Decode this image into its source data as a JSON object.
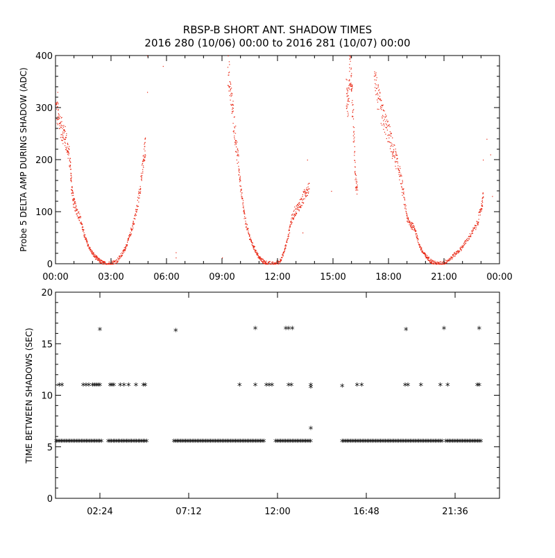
{
  "title_line1": "RBSP-B SHORT ANT. SHADOW TIMES",
  "title_line2": "2016 280 (10/06) 00:00 to 2016 281 (10/07) 00:00",
  "colors": {
    "red": "#e8200c",
    "black": "#000000",
    "axis": "#000000"
  },
  "chart_data": [
    {
      "type": "scatter",
      "id": "top",
      "ylabel": "Probe 5 DELTA AMP DURING SHADOW (ADC)",
      "xlabel": "",
      "x_unit": "hours",
      "xlim": [
        0,
        24
      ],
      "ylim": [
        0,
        400
      ],
      "xticks": [
        0,
        3,
        6,
        9,
        12,
        15,
        18,
        21,
        24
      ],
      "xtick_labels": [
        "00:00",
        "03:00",
        "06:00",
        "09:00",
        "12:00",
        "15:00",
        "18:00",
        "21:00",
        "00:00"
      ],
      "yticks": [
        0,
        100,
        200,
        300,
        400
      ],
      "ytick_labels": [
        "0",
        "100",
        "200",
        "300",
        "400"
      ],
      "marker": "dot",
      "color": "#e8200c",
      "series": [
        {
          "name": "pass1",
          "points": [
            [
              0.0,
              300
            ],
            [
              0.15,
              280
            ],
            [
              0.3,
              260
            ],
            [
              0.45,
              250
            ],
            [
              0.6,
              230
            ],
            [
              0.75,
              200
            ],
            [
              0.85,
              150
            ],
            [
              0.95,
              120
            ],
            [
              1.1,
              105
            ],
            [
              1.3,
              90
            ],
            [
              1.5,
              60
            ],
            [
              1.7,
              40
            ],
            [
              1.9,
              25
            ],
            [
              2.1,
              15
            ],
            [
              2.3,
              8
            ],
            [
              2.5,
              3
            ],
            [
              2.7,
              0
            ],
            [
              3.0,
              2
            ],
            [
              3.3,
              6
            ],
            [
              3.6,
              20
            ],
            [
              3.8,
              35
            ],
            [
              4.0,
              55
            ],
            [
              4.2,
              80
            ],
            [
              4.4,
              110
            ],
            [
              4.6,
              160
            ],
            [
              4.75,
              200
            ],
            [
              4.85,
              230
            ]
          ]
        },
        {
          "name": "pass2",
          "points": [
            [
              9.3,
              380
            ],
            [
              9.45,
              330
            ],
            [
              9.6,
              280
            ],
            [
              9.75,
              230
            ],
            [
              9.9,
              180
            ],
            [
              10.05,
              130
            ],
            [
              10.2,
              90
            ],
            [
              10.4,
              60
            ],
            [
              10.6,
              40
            ],
            [
              10.8,
              25
            ],
            [
              11.0,
              12
            ],
            [
              11.2,
              5
            ],
            [
              11.4,
              2
            ],
            [
              11.8,
              0
            ],
            [
              12.1,
              5
            ],
            [
              12.3,
              20
            ],
            [
              12.5,
              45
            ],
            [
              12.7,
              80
            ],
            [
              12.9,
              100
            ],
            [
              13.1,
              110
            ],
            [
              13.3,
              120
            ],
            [
              13.5,
              140
            ],
            [
              13.7,
              150
            ]
          ]
        },
        {
          "name": "pass3",
          "points": [
            [
              15.7,
              330
            ],
            [
              15.8,
              310
            ],
            [
              15.9,
              380
            ],
            [
              16.0,
              340
            ],
            [
              16.1,
              250
            ],
            [
              16.2,
              160
            ],
            [
              16.3,
              140
            ]
          ]
        },
        {
          "name": "pass4",
          "points": [
            [
              17.2,
              380
            ],
            [
              17.4,
              320
            ],
            [
              17.6,
              290
            ],
            [
              17.8,
              270
            ],
            [
              18.0,
              250
            ],
            [
              18.2,
              220
            ],
            [
              18.4,
              200
            ],
            [
              18.6,
              175
            ],
            [
              18.8,
              130
            ],
            [
              19.0,
              85
            ],
            [
              19.2,
              75
            ],
            [
              19.4,
              70
            ],
            [
              19.6,
              40
            ],
            [
              19.8,
              25
            ],
            [
              20.0,
              15
            ],
            [
              20.2,
              8
            ],
            [
              20.4,
              3
            ],
            [
              20.7,
              0
            ],
            [
              21.0,
              3
            ],
            [
              21.3,
              10
            ],
            [
              21.6,
              20
            ],
            [
              21.9,
              30
            ],
            [
              22.2,
              45
            ],
            [
              22.5,
              60
            ],
            [
              22.8,
              80
            ],
            [
              23.0,
              110
            ],
            [
              23.1,
              130
            ]
          ]
        }
      ],
      "outliers": [
        [
          0.1,
          330
        ],
        [
          2.3,
          10
        ],
        [
          4.95,
          400
        ],
        [
          4.95,
          330
        ],
        [
          5.8,
          380
        ],
        [
          6.5,
          12
        ],
        [
          6.5,
          22
        ],
        [
          9.0,
          12
        ],
        [
          13.35,
          60
        ],
        [
          13.6,
          200
        ],
        [
          14.9,
          140
        ],
        [
          23.1,
          200
        ],
        [
          23.3,
          240
        ],
        [
          23.5,
          210
        ],
        [
          23.6,
          130
        ]
      ]
    },
    {
      "type": "scatter",
      "id": "bottom",
      "ylabel": "TIME BETWEEN SHADOWS (SEC)",
      "xlabel": "",
      "x_unit": "hours",
      "xlim": [
        0,
        24
      ],
      "ylim": [
        0,
        20
      ],
      "xticks": [
        2.4,
        7.2,
        12.0,
        16.8,
        21.6
      ],
      "xtick_labels": [
        "02:24",
        "07:12",
        "12:00",
        "16:48",
        "21:36"
      ],
      "yticks": [
        0,
        5,
        10,
        15,
        20
      ],
      "ytick_labels": [
        "0",
        "5",
        "10",
        "15",
        "20"
      ],
      "marker": "asterisk",
      "color": "#000000",
      "baseline_value": 5.45,
      "baseline_segments": [
        [
          0.05,
          2.5
        ],
        [
          2.85,
          4.95
        ],
        [
          6.4,
          11.3
        ],
        [
          11.9,
          13.8
        ],
        [
          15.5,
          18.1
        ],
        [
          18.1,
          20.9
        ],
        [
          21.1,
          23.0
        ]
      ],
      "points": [
        [
          0.2,
          10.9
        ],
        [
          0.35,
          10.9
        ],
        [
          1.5,
          10.9
        ],
        [
          1.65,
          10.9
        ],
        [
          1.8,
          10.9
        ],
        [
          2.0,
          10.9
        ],
        [
          2.1,
          10.9
        ],
        [
          2.2,
          10.9
        ],
        [
          2.3,
          10.9
        ],
        [
          2.4,
          10.9
        ],
        [
          2.95,
          10.9
        ],
        [
          3.05,
          10.9
        ],
        [
          3.15,
          10.9
        ],
        [
          3.5,
          10.9
        ],
        [
          3.7,
          10.9
        ],
        [
          3.95,
          10.9
        ],
        [
          4.35,
          10.9
        ],
        [
          4.75,
          10.9
        ],
        [
          4.85,
          10.9
        ],
        [
          9.95,
          10.9
        ],
        [
          10.8,
          10.9
        ],
        [
          11.4,
          10.9
        ],
        [
          11.55,
          10.9
        ],
        [
          11.7,
          10.9
        ],
        [
          12.6,
          10.9
        ],
        [
          12.75,
          10.9
        ],
        [
          13.8,
          10.9
        ],
        [
          13.8,
          10.7
        ],
        [
          15.5,
          10.8
        ],
        [
          16.3,
          10.9
        ],
        [
          16.55,
          10.9
        ],
        [
          18.9,
          10.9
        ],
        [
          19.05,
          10.9
        ],
        [
          19.75,
          10.9
        ],
        [
          20.8,
          10.9
        ],
        [
          21.2,
          10.9
        ],
        [
          22.8,
          10.9
        ],
        [
          22.9,
          10.9
        ],
        [
          2.4,
          16.3
        ],
        [
          6.5,
          16.2
        ],
        [
          10.8,
          16.4
        ],
        [
          12.45,
          16.4
        ],
        [
          12.6,
          16.4
        ],
        [
          12.8,
          16.4
        ],
        [
          18.95,
          16.3
        ],
        [
          21.0,
          16.4
        ],
        [
          22.9,
          16.4
        ],
        [
          13.8,
          6.7
        ]
      ]
    }
  ]
}
